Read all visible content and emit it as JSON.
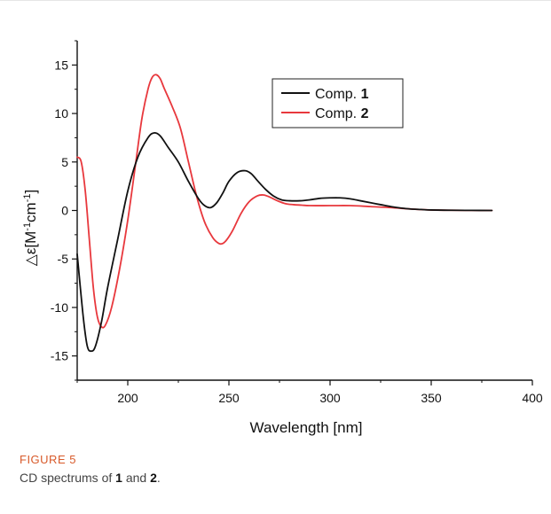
{
  "chart_data": {
    "type": "line",
    "xlabel": "Wavelength [nm]",
    "ylabel_main": "△ε[M",
    "ylabel_sup1": "-1",
    "ylabel_mid": "cm",
    "ylabel_sup2": "-1",
    "ylabel_end": "]",
    "xlim": [
      175,
      400
    ],
    "ylim": [
      -17.5,
      17.5
    ],
    "xticks": [
      200,
      250,
      300,
      350,
      400
    ],
    "yticks": [
      -15,
      -10,
      -5,
      0,
      5,
      10,
      15
    ],
    "grid": false,
    "legend_position": "top-right",
    "series": [
      {
        "name_prefix": "Comp. ",
        "name_bold": "1",
        "color": "#111111",
        "x": [
          175,
          178,
          180,
          182,
          184,
          187,
          190,
          195,
          200,
          205,
          210,
          213,
          216,
          220,
          225,
          230,
          235,
          238,
          241,
          244,
          247,
          250,
          254,
          258,
          261,
          264,
          268,
          272,
          276,
          280,
          285,
          290,
          295,
          300,
          305,
          310,
          315,
          320,
          325,
          330,
          335,
          340,
          345,
          350,
          360,
          370,
          380
        ],
        "y": [
          -4.5,
          -11,
          -14,
          -14.5,
          -14,
          -11.5,
          -8,
          -3,
          2,
          5.5,
          7.5,
          8,
          7.7,
          6.5,
          5,
          3,
          1.2,
          0.5,
          0.3,
          0.8,
          1.8,
          3,
          3.9,
          4.1,
          3.8,
          3.1,
          2.2,
          1.5,
          1.1,
          1.0,
          1.0,
          1.1,
          1.25,
          1.3,
          1.3,
          1.2,
          1.0,
          0.8,
          0.6,
          0.4,
          0.25,
          0.15,
          0.1,
          0.05,
          0.02,
          0.01,
          0.0
        ]
      },
      {
        "name_prefix": "Comp. ",
        "name_bold": "2",
        "color": "#e8383d",
        "x": [
          175,
          177,
          179,
          181,
          183,
          185,
          187,
          189,
          192,
          196,
          200,
          204,
          207,
          210,
          212,
          214,
          216,
          218,
          222,
          226,
          230,
          234,
          238,
          242,
          245,
          247,
          249,
          252,
          256,
          260,
          264,
          267,
          270,
          274,
          278,
          282,
          286,
          290,
          300,
          310,
          320,
          330,
          340,
          350,
          360,
          370,
          380
        ],
        "y": [
          5.5,
          5,
          2,
          -3,
          -8,
          -11,
          -12,
          -11.8,
          -10,
          -6,
          -1,
          5,
          9.5,
          12.5,
          13.7,
          14,
          13.6,
          12.6,
          10.7,
          8.5,
          5,
          1.5,
          -1.2,
          -2.8,
          -3.4,
          -3.4,
          -3,
          -2,
          -0.3,
          0.9,
          1.5,
          1.6,
          1.4,
          1.0,
          0.7,
          0.6,
          0.55,
          0.5,
          0.5,
          0.5,
          0.4,
          0.3,
          0.15,
          0.05,
          0.02,
          0.01,
          0.0
        ]
      }
    ]
  },
  "caption": {
    "label": "FIGURE 5",
    "text_prefix": "CD spectrums of ",
    "ref1": "1",
    "text_mid": " and ",
    "ref2": "2",
    "text_end": "."
  }
}
